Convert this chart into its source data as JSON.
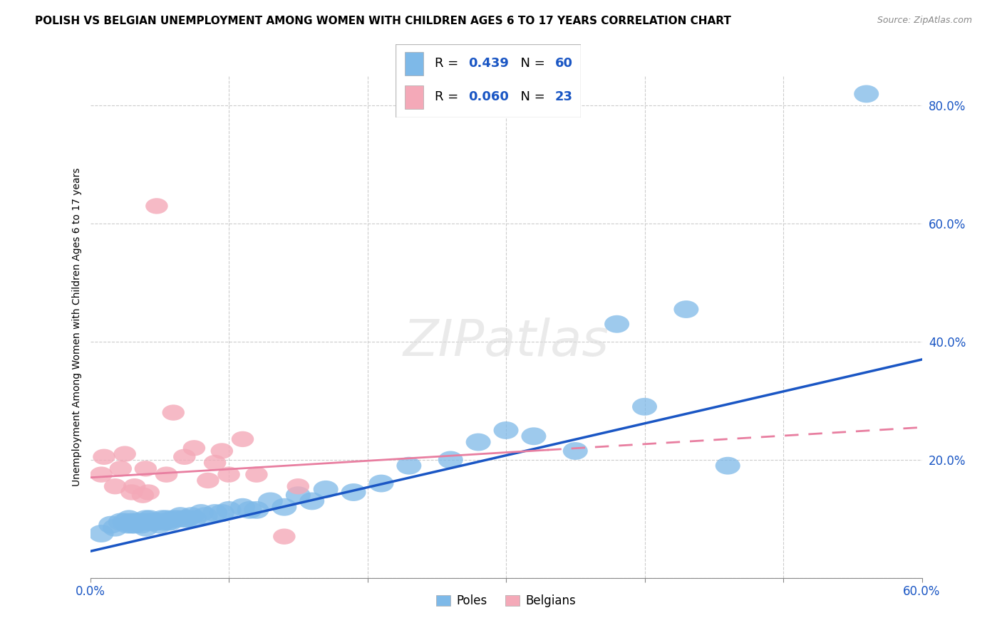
{
  "title": "POLISH VS BELGIAN UNEMPLOYMENT AMONG WOMEN WITH CHILDREN AGES 6 TO 17 YEARS CORRELATION CHART",
  "source": "Source: ZipAtlas.com",
  "ylabel": "Unemployment Among Women with Children Ages 6 to 17 years",
  "xlim": [
    0.0,
    0.6
  ],
  "ylim": [
    0.0,
    0.85
  ],
  "xticks": [
    0.0,
    0.1,
    0.2,
    0.3,
    0.4,
    0.5,
    0.6
  ],
  "yticks": [
    0.0,
    0.2,
    0.4,
    0.6,
    0.8
  ],
  "poles_color": "#7EB9E8",
  "belgians_color": "#F4A9B8",
  "poles_line_color": "#1A56C4",
  "belgians_line_color": "#E87EA0",
  "poles_R": 0.439,
  "poles_N": 60,
  "belgians_R": 0.06,
  "belgians_N": 23,
  "watermark": "ZIPatlas",
  "poles_line_start_y": 0.045,
  "poles_line_end_y": 0.37,
  "belgians_line_start_y": 0.17,
  "belgians_line_end_y": 0.255,
  "poles_x": [
    0.008,
    0.015,
    0.018,
    0.022,
    0.025,
    0.027,
    0.028,
    0.03,
    0.03,
    0.032,
    0.033,
    0.035,
    0.037,
    0.038,
    0.04,
    0.04,
    0.042,
    0.043,
    0.045,
    0.047,
    0.048,
    0.05,
    0.052,
    0.053,
    0.055,
    0.056,
    0.058,
    0.06,
    0.063,
    0.065,
    0.068,
    0.07,
    0.073,
    0.075,
    0.08,
    0.083,
    0.09,
    0.095,
    0.1,
    0.11,
    0.115,
    0.12,
    0.13,
    0.14,
    0.15,
    0.16,
    0.17,
    0.19,
    0.21,
    0.23,
    0.26,
    0.28,
    0.3,
    0.32,
    0.35,
    0.38,
    0.4,
    0.43,
    0.46,
    0.56
  ],
  "poles_y": [
    0.075,
    0.09,
    0.085,
    0.095,
    0.095,
    0.09,
    0.1,
    0.09,
    0.095,
    0.09,
    0.095,
    0.095,
    0.09,
    0.095,
    0.085,
    0.1,
    0.095,
    0.1,
    0.095,
    0.095,
    0.095,
    0.09,
    0.1,
    0.095,
    0.1,
    0.095,
    0.095,
    0.1,
    0.1,
    0.105,
    0.1,
    0.1,
    0.105,
    0.1,
    0.11,
    0.105,
    0.11,
    0.11,
    0.115,
    0.12,
    0.115,
    0.115,
    0.13,
    0.12,
    0.14,
    0.13,
    0.15,
    0.145,
    0.16,
    0.19,
    0.2,
    0.23,
    0.25,
    0.24,
    0.215,
    0.43,
    0.29,
    0.455,
    0.19,
    0.82
  ],
  "belgians_x": [
    0.008,
    0.01,
    0.018,
    0.022,
    0.025,
    0.03,
    0.032,
    0.038,
    0.04,
    0.042,
    0.048,
    0.055,
    0.06,
    0.068,
    0.075,
    0.085,
    0.09,
    0.095,
    0.1,
    0.11,
    0.12,
    0.14,
    0.15
  ],
  "belgians_y": [
    0.175,
    0.205,
    0.155,
    0.185,
    0.21,
    0.145,
    0.155,
    0.14,
    0.185,
    0.145,
    0.63,
    0.175,
    0.28,
    0.205,
    0.22,
    0.165,
    0.195,
    0.215,
    0.175,
    0.235,
    0.175,
    0.07,
    0.155
  ]
}
